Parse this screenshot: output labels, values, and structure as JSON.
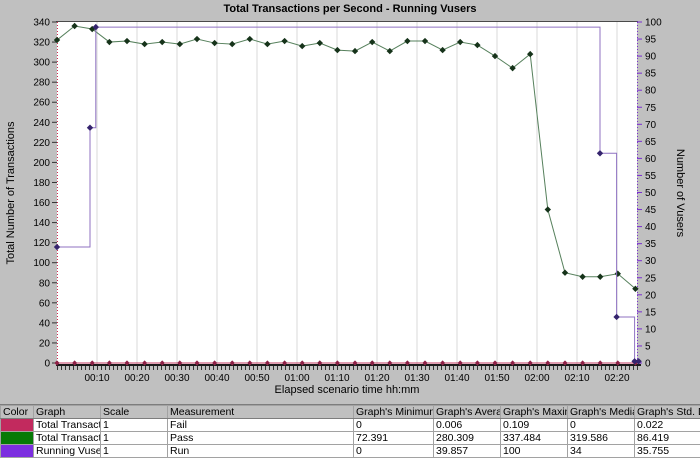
{
  "chart_data": {
    "type": "line",
    "title": "Total Transactions per Second - Running Vusers",
    "x_axis": {
      "label": "Elapsed scenario time hh:mm",
      "total_minutes": 145,
      "major_tick_minutes": 10,
      "tick_labels": [
        "00:10",
        "00:20",
        "00:30",
        "00:40",
        "00:50",
        "01:00",
        "01:10",
        "01:20",
        "01:30",
        "01:40",
        "01:50",
        "02:00",
        "02:10",
        "02:20"
      ]
    },
    "y_left_axis": {
      "label": "Total Number of Transactions",
      "min": 0,
      "max": 340,
      "step": 20
    },
    "y_right_axis": {
      "label": "Number of Vusers",
      "min": 0,
      "max": 100,
      "step": 5
    },
    "grid_color": "#d8d8d8",
    "series": [
      {
        "name": "Fail",
        "axis": "left",
        "line_color": "#c23a60",
        "marker_color": "#8e2046",
        "x_minutes": [
          0,
          4.4,
          8.8,
          13.1,
          17.5,
          21.9,
          26.3,
          30.7,
          35.0,
          39.4,
          43.8,
          48.2,
          52.6,
          56.9,
          61.3,
          65.7,
          70.1,
          74.5,
          78.8,
          83.2,
          87.6,
          92.0,
          96.4,
          100.8,
          105.1,
          109.5,
          113.9,
          118.3,
          122.7,
          127.0,
          131.4,
          135.8,
          140.2,
          144.6
        ],
        "values": [
          0,
          0,
          0,
          0,
          0,
          0,
          0,
          0,
          0,
          0,
          0,
          0,
          0,
          0,
          0,
          0,
          0,
          0,
          0,
          0,
          0,
          0,
          0,
          0,
          0,
          0,
          0,
          0,
          0,
          0,
          0,
          0,
          0,
          0
        ]
      },
      {
        "name": "Pass",
        "axis": "left",
        "line_color": "#56805c",
        "marker_color": "#16331a",
        "x_minutes": [
          0,
          4.4,
          8.8,
          13.1,
          17.5,
          21.9,
          26.3,
          30.7,
          35.0,
          39.4,
          43.8,
          48.2,
          52.6,
          56.9,
          61.3,
          65.7,
          70.1,
          74.5,
          78.8,
          83.2,
          87.6,
          92.0,
          96.4,
          100.8,
          105.1,
          109.5,
          113.9,
          118.3,
          122.7,
          127.0,
          131.4,
          135.8,
          140.2,
          144.6
        ],
        "values": [
          322,
          336,
          333,
          320,
          321,
          318,
          320,
          318,
          323,
          319,
          318,
          323,
          318,
          321,
          316,
          319,
          312,
          311,
          320,
          311,
          321,
          321,
          312,
          320,
          317,
          306,
          294,
          308,
          153,
          90,
          86,
          86,
          89,
          74
        ]
      },
      {
        "name": "Run",
        "axis": "right",
        "line_color": "#8f72c2",
        "marker_color": "#35246e",
        "step_points": [
          [
            0,
            34
          ],
          [
            8.25,
            34
          ],
          [
            8.25,
            69
          ],
          [
            9.7,
            69
          ],
          [
            9.7,
            98.5
          ],
          [
            135.75,
            98.5
          ],
          [
            135.75,
            61.5
          ],
          [
            139.9,
            61.5
          ],
          [
            139.9,
            13.5
          ],
          [
            144.4,
            13.5
          ],
          [
            144.4,
            0.5
          ],
          [
            145.6,
            0.5
          ]
        ],
        "marker_points": [
          [
            0,
            34
          ],
          [
            8.25,
            69
          ],
          [
            9.7,
            98.5
          ],
          [
            135.75,
            61.5
          ],
          [
            139.9,
            13.5
          ],
          [
            144.4,
            0.5
          ],
          [
            145.4,
            0.5
          ]
        ]
      }
    ]
  },
  "table": {
    "headers": [
      "Color",
      "Graph",
      "Scale",
      "Measurement",
      "Graph's Minimum",
      "Graph's Average",
      "Graph's Maximum",
      "Graph's Median",
      "Graph's Std. Dev"
    ],
    "rows": [
      {
        "color": "#c22a5e",
        "graph": "Total Transaction",
        "scale": "1",
        "measurement": "Fail",
        "min": "0",
        "avg": "0.006",
        "max": "0.109",
        "median": "0",
        "std": "0.022"
      },
      {
        "color": "#067a06",
        "graph": "Total Transaction",
        "scale": "1",
        "measurement": "Pass",
        "min": "72.391",
        "avg": "280.309",
        "max": "337.484",
        "median": "319.586",
        "std": "86.419"
      },
      {
        "color": "#7c2ee0",
        "graph": "Running Vusers",
        "scale": "1",
        "measurement": "Run",
        "min": "0",
        "avg": "39.857",
        "max": "100",
        "median": "34",
        "std": "35.755"
      }
    ]
  }
}
